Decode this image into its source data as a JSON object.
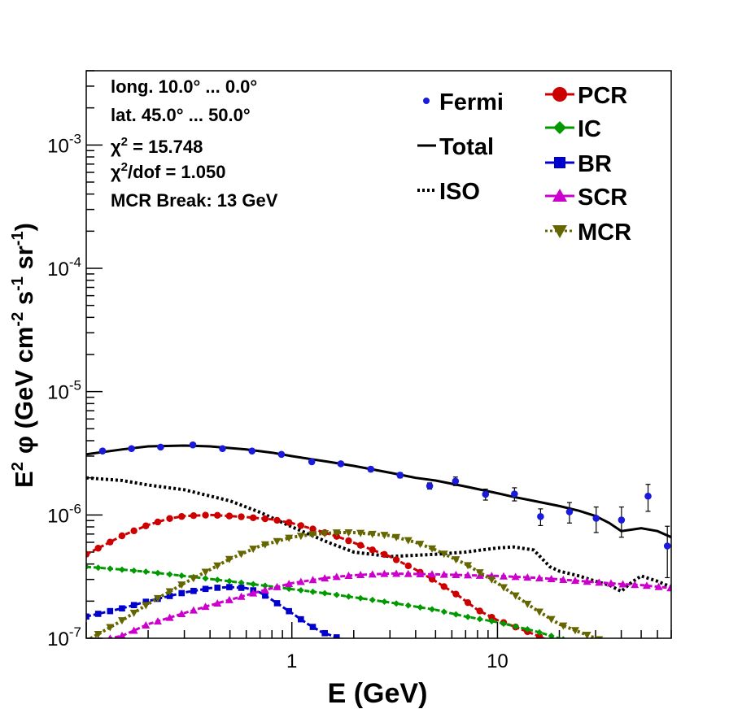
{
  "chart_data": {
    "type": "line",
    "xlabel": "E (GeV)",
    "ylabel_parts": [
      "E",
      "2",
      "φ (GeV cm",
      "-2",
      " s",
      "-1",
      " sr",
      "-1",
      ")"
    ],
    "xscale": "log",
    "yscale": "log",
    "xlim": [
      0.1,
      70
    ],
    "ylim": [
      1e-07,
      0.004
    ],
    "x_ticks": [
      {
        "v": 1,
        "label": "1"
      },
      {
        "v": 10,
        "label": "10"
      }
    ],
    "y_ticks": [
      {
        "v": 1e-07,
        "base": "10",
        "exp": "-7"
      },
      {
        "v": 1e-06,
        "base": "10",
        "exp": "-6"
      },
      {
        "v": 1e-05,
        "base": "10",
        "exp": "-5"
      },
      {
        "v": 0.0001,
        "base": "10",
        "exp": "-4"
      },
      {
        "v": 0.001,
        "base": "10",
        "exp": "-3"
      }
    ],
    "info_lines": [
      {
        "pre": "long. 10.0° ... 0.0°",
        "sup": "",
        "post": ""
      },
      {
        "pre": "lat. 45.0° ... 50.0°",
        "sup": "",
        "post": ""
      },
      {
        "pre": "χ",
        "sup": "2",
        "post": " = 15.748"
      },
      {
        "pre": "χ",
        "sup": "2",
        "post": "/dof = 1.050"
      },
      {
        "pre": "MCR Break: 13 GeV",
        "sup": "",
        "post": ""
      }
    ],
    "legend": [
      {
        "label": "Fermi",
        "color": "#1a1adb",
        "marker": "dot"
      },
      {
        "label": "Total",
        "color": "#000000",
        "marker": "line"
      },
      {
        "label": "ISO",
        "color": "#000000",
        "marker": "dotted"
      },
      {
        "label": "PCR",
        "color": "#cc0000",
        "marker": "circle"
      },
      {
        "label": "IC",
        "color": "#009900",
        "marker": "diamond"
      },
      {
        "label": "BR",
        "color": "#0000cc",
        "marker": "square"
      },
      {
        "label": "SCR",
        "color": "#cc00cc",
        "marker": "triangle"
      },
      {
        "label": "MCR",
        "color": "#666600",
        "marker": "triangle-down"
      }
    ],
    "fermi": {
      "name": "Fermi",
      "color": "#1a1adb",
      "points": [
        {
          "x": 0.12,
          "y": 3.3e-06,
          "err": 1e-07
        },
        {
          "x": 0.166,
          "y": 3.45e-06,
          "err": 1e-07
        },
        {
          "x": 0.23,
          "y": 3.55e-06,
          "err": 1e-07
        },
        {
          "x": 0.33,
          "y": 3.7e-06,
          "err": 1e-07
        },
        {
          "x": 0.46,
          "y": 3.45e-06,
          "err": 1e-07
        },
        {
          "x": 0.64,
          "y": 3.3e-06,
          "err": 1e-07
        },
        {
          "x": 0.89,
          "y": 3.1e-06,
          "err": 1e-07
        },
        {
          "x": 1.25,
          "y": 2.7e-06,
          "err": 1e-07
        },
        {
          "x": 1.73,
          "y": 2.6e-06,
          "err": 1e-07
        },
        {
          "x": 2.42,
          "y": 2.35e-06,
          "err": 1e-07
        },
        {
          "x": 3.36,
          "y": 2.1e-06,
          "err": 1e-07
        },
        {
          "x": 4.68,
          "y": 1.72e-06,
          "err": 1e-07
        },
        {
          "x": 6.25,
          "y": 1.88e-06,
          "err": 1.5e-07
        },
        {
          "x": 8.75,
          "y": 1.47e-06,
          "err": 1.5e-07
        },
        {
          "x": 12.1,
          "y": 1.48e-06,
          "err": 1.8e-07
        },
        {
          "x": 16.2,
          "y": 9.7e-07,
          "err": 1.5e-07
        },
        {
          "x": 22.4,
          "y": 1.06e-06,
          "err": 2e-07
        },
        {
          "x": 30.2,
          "y": 9.4e-07,
          "err": 2.2e-07
        },
        {
          "x": 40.1,
          "y": 9.1e-07,
          "err": 2.5e-07
        },
        {
          "x": 54.0,
          "y": 1.42e-06,
          "err": 3.5e-07
        },
        {
          "x": 67.0,
          "y": 5.6e-07,
          "err": 2.5e-07
        }
      ]
    },
    "series": [
      {
        "name": "Total",
        "color": "#000000",
        "style": "solid",
        "marker": "none",
        "x": [
          0.1,
          0.15,
          0.2,
          0.3,
          0.4,
          0.6,
          0.8,
          1,
          1.5,
          2,
          3,
          4,
          5,
          7,
          10,
          12,
          15,
          20,
          25,
          30,
          35,
          40,
          45,
          50,
          60,
          70
        ],
        "y": [
          3.1e-06,
          3.4e-06,
          3.6e-06,
          3.65e-06,
          3.6e-06,
          3.4e-06,
          3.2e-06,
          3e-06,
          2.7e-06,
          2.5e-06,
          2.2e-06,
          2e-06,
          1.9e-06,
          1.7e-06,
          1.5e-06,
          1.4e-06,
          1.3e-06,
          1.18e-06,
          1.08e-06,
          9.8e-07,
          8.6e-07,
          7.4e-07,
          7.6e-07,
          7.8e-07,
          7.4e-07,
          6.6e-07
        ]
      },
      {
        "name": "ISO",
        "color": "#000000",
        "style": "dotted",
        "marker": "none",
        "x": [
          0.1,
          0.15,
          0.2,
          0.3,
          0.5,
          0.7,
          1,
          1.5,
          2,
          3,
          5,
          7,
          10,
          12,
          15,
          18,
          20,
          25,
          30,
          35,
          40,
          45,
          50,
          60,
          70
        ],
        "y": [
          2e-06,
          1.9e-06,
          1.75e-06,
          1.6e-06,
          1.3e-06,
          1.05e-06,
          8e-07,
          6e-07,
          5e-07,
          4.6e-07,
          4.8e-07,
          5e-07,
          5.4e-07,
          5.5e-07,
          5.2e-07,
          3.8e-07,
          3.5e-07,
          3.2e-07,
          2.9e-07,
          2.7e-07,
          2.4e-07,
          2.85e-07,
          3.2e-07,
          2.9e-07,
          2.6e-07
        ]
      },
      {
        "name": "PCR",
        "color": "#cc0000",
        "style": "dashed",
        "marker": "circle",
        "x": [
          0.1,
          0.12,
          0.15,
          0.2,
          0.25,
          0.3,
          0.4,
          0.5,
          0.6,
          0.8,
          1,
          1.3,
          1.7,
          2.2,
          3,
          4,
          5,
          6.5,
          8,
          10,
          12,
          15,
          18,
          20
        ],
        "y": [
          4.8e-07,
          5.6e-07,
          6.8e-07,
          8.3e-07,
          9.3e-07,
          9.8e-07,
          1e-06,
          9.8e-07,
          9.6e-07,
          9.2e-07,
          8.6e-07,
          7.6e-07,
          6.6e-07,
          5.6e-07,
          4.6e-07,
          3.6e-07,
          2.9e-07,
          2.2e-07,
          1.7e-07,
          1.4e-07,
          1.25e-07,
          1.08e-07,
          9.5e-08,
          9e-08
        ]
      },
      {
        "name": "IC",
        "color": "#009900",
        "style": "dashed",
        "marker": "diamond",
        "x": [
          0.1,
          0.15,
          0.2,
          0.3,
          0.5,
          0.7,
          1,
          1.5,
          2,
          3,
          5,
          7,
          10,
          15,
          20,
          25
        ],
        "y": [
          3.8e-07,
          3.6e-07,
          3.45e-07,
          3.2e-07,
          2.9e-07,
          2.7e-07,
          2.5e-07,
          2.3e-07,
          2.15e-07,
          1.95e-07,
          1.7e-07,
          1.5e-07,
          1.35e-07,
          1.15e-07,
          1e-07,
          9e-08
        ]
      },
      {
        "name": "BR",
        "color": "#0000cc",
        "style": "dashed",
        "marker": "square",
        "x": [
          0.1,
          0.15,
          0.2,
          0.3,
          0.4,
          0.5,
          0.6,
          0.7,
          0.8,
          1,
          1.2,
          1.4,
          1.7,
          2
        ],
        "y": [
          1.5e-07,
          1.75e-07,
          2e-07,
          2.35e-07,
          2.55e-07,
          2.6e-07,
          2.55e-07,
          2.35e-07,
          2.05e-07,
          1.6e-07,
          1.3e-07,
          1.12e-07,
          1e-07,
          9e-08
        ]
      },
      {
        "name": "SCR",
        "color": "#cc00cc",
        "style": "dashed",
        "marker": "triangle",
        "x": [
          0.1,
          0.15,
          0.2,
          0.3,
          0.4,
          0.5,
          0.7,
          1,
          1.5,
          2,
          3,
          5,
          7,
          10,
          15,
          20,
          30,
          40,
          50,
          70
        ],
        "y": [
          9e-08,
          1.05e-07,
          1.3e-07,
          1.6e-07,
          1.85e-07,
          2.05e-07,
          2.4e-07,
          2.8e-07,
          3.1e-07,
          3.25e-07,
          3.35e-07,
          3.3e-07,
          3.25e-07,
          3.2e-07,
          3.1e-07,
          3e-07,
          2.85e-07,
          2.75e-07,
          2.7e-07,
          2.55e-07
        ]
      },
      {
        "name": "MCR",
        "color": "#666600",
        "style": "dotted",
        "marker": "triangle-down",
        "x": [
          0.1,
          0.15,
          0.2,
          0.3,
          0.4,
          0.5,
          0.7,
          1,
          1.3,
          1.7,
          2,
          3,
          4,
          5,
          7,
          10,
          15,
          20,
          30,
          40
        ],
        "y": [
          9.5e-08,
          1.4e-07,
          1.9e-07,
          2.8e-07,
          3.6e-07,
          4.4e-07,
          5.6e-07,
          6.6e-07,
          7e-07,
          7.2e-07,
          7.2e-07,
          6.8e-07,
          6e-07,
          5.2e-07,
          4e-07,
          2.8e-07,
          1.75e-07,
          1.3e-07,
          1e-07,
          8.5e-08
        ]
      }
    ]
  }
}
